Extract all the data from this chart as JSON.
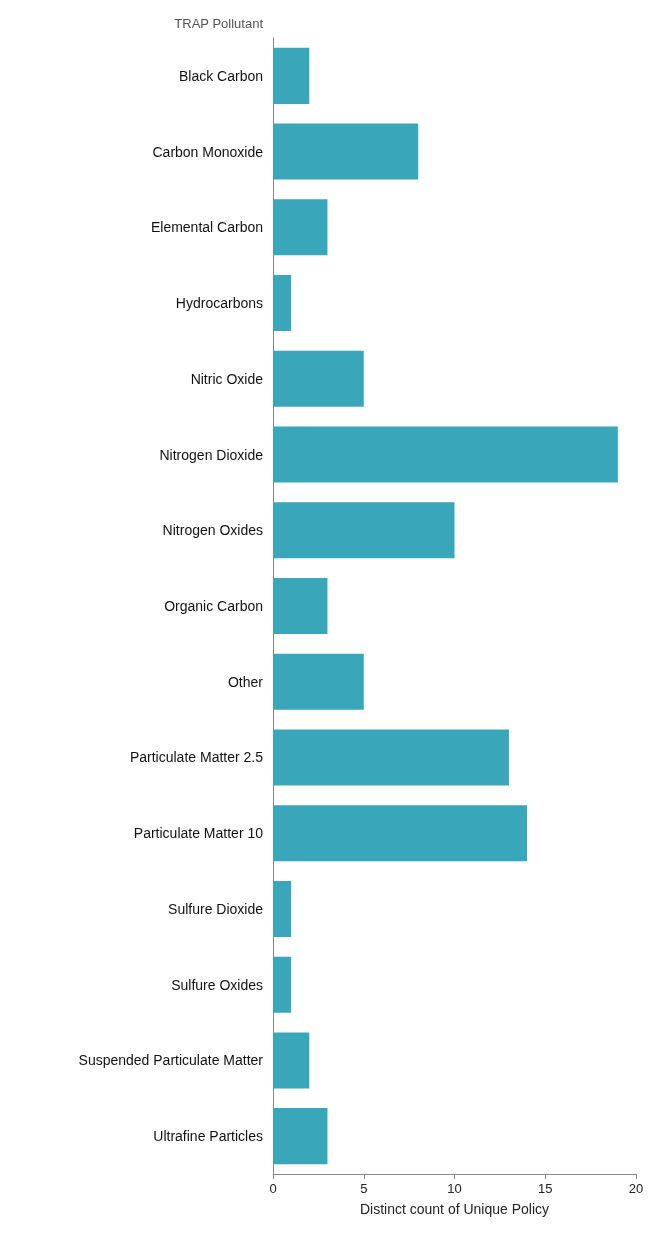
{
  "chart_data": {
    "type": "bar",
    "orientation": "horizontal",
    "ylabel": "TRAP Pollutant",
    "xlabel": "Distinct count of Unique Policy",
    "categories": [
      "Black Carbon",
      "Carbon Monoxide",
      "Elemental Carbon",
      "Hydrocarbons",
      "Nitric Oxide",
      "Nitrogen Dioxide",
      "Nitrogen Oxides",
      "Organic Carbon",
      "Other",
      "Particulate Matter 2.5",
      "Particulate Matter 10",
      "Sulfure Dioxide",
      "Sulfure Oxides",
      "Suspended Particulate Matter",
      "Ultrafine Particles"
    ],
    "values": [
      2,
      8,
      3,
      1,
      5,
      19,
      10,
      3,
      5,
      13,
      14,
      1,
      1,
      2,
      3
    ],
    "color": "#3aa6b9",
    "xlim": [
      0,
      20
    ],
    "xticks": [
      0,
      5,
      10,
      15,
      20
    ],
    "grid": false
  }
}
